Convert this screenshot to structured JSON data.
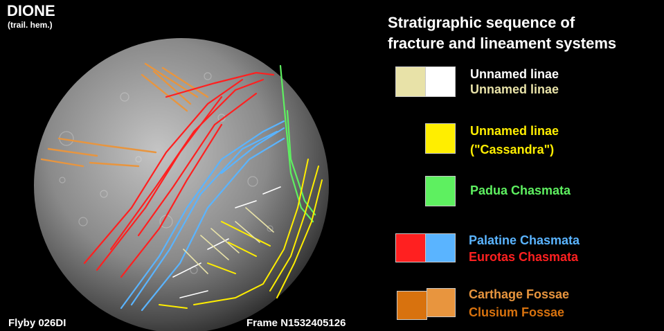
{
  "title": "DIONE",
  "subtitle": "(trail. hem.)",
  "flyby": "Flyby 026DI",
  "frame": "Frame N1532405126",
  "legend": {
    "heading_line1": "Stratigraphic sequence of",
    "heading_line2": "fracture and lineament systems",
    "groups": [
      {
        "labels": [
          "Unnamed linae",
          "Unnamed linae"
        ],
        "label_colors": [
          "#ffffff",
          "#e8e2a8"
        ],
        "swatches": [
          "#e8e2a8",
          "#ffffff"
        ]
      },
      {
        "labels": [
          "Unnamed linae",
          "(\"Cassandra\")"
        ],
        "label_colors": [
          "#ffee00",
          "#ffee00"
        ],
        "swatches": [
          "#ffee00"
        ]
      },
      {
        "labels": [
          "Padua Chasmata"
        ],
        "label_colors": [
          "#5ef060"
        ],
        "swatches": [
          "#5ef060"
        ]
      },
      {
        "labels": [
          "Palatine Chasmata",
          "Eurotas Chasmata"
        ],
        "label_colors": [
          "#5ab4ff",
          "#ff2020"
        ],
        "swatches": [
          "#ff2020",
          "#5ab4ff"
        ]
      },
      {
        "labels": [
          "Carthage Fossae",
          "Clusium Fossae"
        ],
        "label_colors": [
          "#e8953e",
          "#d8720e"
        ],
        "swatches": [
          "#d8720e",
          "#e8953e"
        ]
      }
    ]
  }
}
